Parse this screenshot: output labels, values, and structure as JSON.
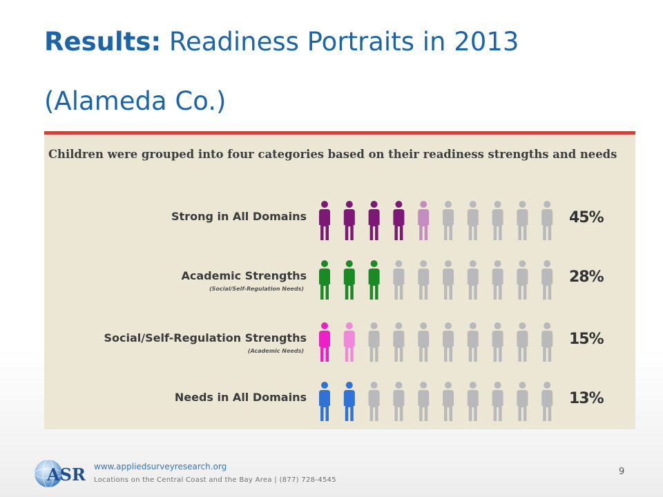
{
  "slide": {
    "title_bold": "Results:",
    "title_rest": "Readiness Portraits in 2013",
    "title_line2": "(Alameda Co.)",
    "page_number": "9"
  },
  "footer": {
    "logo_text": "ASR",
    "url": "www.appliedsurveyresearch.org",
    "locations": "Locations on the Central Coast and the Bay Area  |  (877) 728-4545"
  },
  "colors": {
    "title": "#1b64a9",
    "gray_figure": "#b9b9bb",
    "background": "#ece6d4"
  },
  "chart_data": {
    "type": "bar",
    "title": "Children were grouped into four categories based on their readiness strengths and needs",
    "figures_per_row": 10,
    "categories": [
      {
        "label": "Strong in All Domains",
        "sublabel": "",
        "value": 45,
        "value_label": "45%",
        "color": "#7d1876",
        "partial_color": "#c58cc0"
      },
      {
        "label": "Academic Strengths",
        "sublabel": "(Social/Self-Regulation Needs)",
        "value": 28,
        "value_label": "28%",
        "color": "#1a8a25",
        "partial_color": "#1a8a25"
      },
      {
        "label": "Social/Self-Regulation Strengths",
        "sublabel": "(Academic Needs)",
        "value": 15,
        "value_label": "15%",
        "color": "#ee1fc8",
        "partial_color": "#f089da"
      },
      {
        "label": "Needs in All Domains",
        "sublabel": "",
        "value": 13,
        "value_label": "13%",
        "color": "#2f73d6",
        "partial_color": "#2f73d6"
      }
    ]
  }
}
